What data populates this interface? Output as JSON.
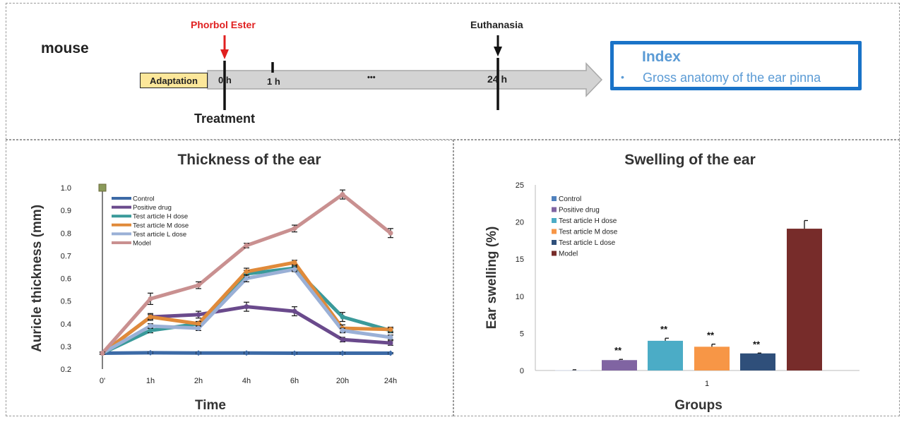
{
  "timeline": {
    "species": "mouse",
    "inducer": "Phorbol Ester",
    "endpoint": "Euthanasia",
    "adaptation": "Adaptation",
    "treatment": "Treatment",
    "ticks": [
      "0 h",
      "1 h",
      "•••",
      "24 h"
    ],
    "index_title": "Index",
    "index_bullet": "•",
    "index_item": "Gross anatomy of the ear pinna",
    "colors": {
      "inducer": "#e02020",
      "index_border": "#1a73c8",
      "index_text": "#5b9bd5",
      "adaptation_bg": "#fce79a"
    }
  },
  "chart_data": [
    {
      "type": "line",
      "title": "Thickness of the ear",
      "xlabel": "Time",
      "ylabel": "Auricle thickness (mm)",
      "categories": [
        "0'",
        "1h",
        "2h",
        "4h",
        "6h",
        "20h",
        "24h"
      ],
      "ylim": [
        0.2,
        1.0
      ],
      "yticks": [
        "0.2",
        "0.3",
        "0.4",
        "0.5",
        "0.6",
        "0.7",
        "0.8",
        "0.9",
        "1.0"
      ],
      "legend_position": "top-left",
      "series": [
        {
          "name": "Control",
          "color": "#3c6aa6",
          "values": [
            0.27,
            0.272,
            0.271,
            0.271,
            0.27,
            0.27,
            0.27
          ],
          "errors": [
            0.003,
            0.003,
            0.003,
            0.003,
            0.003,
            0.003,
            0.003
          ]
        },
        {
          "name": "Positive drug",
          "color": "#6a4a8c",
          "values": [
            0.27,
            0.43,
            0.44,
            0.475,
            0.455,
            0.33,
            0.315
          ],
          "errors": [
            0.005,
            0.01,
            0.015,
            0.02,
            0.02,
            0.01,
            0.01
          ]
        },
        {
          "name": "Test article H dose",
          "color": "#3a9a9a",
          "values": [
            0.27,
            0.37,
            0.4,
            0.62,
            0.645,
            0.43,
            0.37
          ],
          "errors": [
            0.005,
            0.01,
            0.01,
            0.015,
            0.01,
            0.02,
            0.01
          ]
        },
        {
          "name": "Test article M dose",
          "color": "#e08a3a",
          "values": [
            0.27,
            0.43,
            0.4,
            0.63,
            0.67,
            0.38,
            0.375
          ],
          "errors": [
            0.005,
            0.015,
            0.01,
            0.015,
            0.01,
            0.015,
            0.01
          ]
        },
        {
          "name": "Test article L dose",
          "color": "#9ab0d6",
          "values": [
            0.27,
            0.39,
            0.38,
            0.6,
            0.64,
            0.37,
            0.34
          ],
          "errors": [
            0.005,
            0.01,
            0.01,
            0.015,
            0.01,
            0.01,
            0.01
          ]
        },
        {
          "name": "Model",
          "color": "#c99090",
          "values": [
            0.27,
            0.51,
            0.57,
            0.745,
            0.82,
            0.97,
            0.8
          ],
          "errors": [
            0.005,
            0.025,
            0.015,
            0.01,
            0.015,
            0.02,
            0.02
          ]
        }
      ]
    },
    {
      "type": "bar",
      "title": "Swelling of the ear",
      "xlabel": "Groups",
      "ylabel": "Ear swelling (%)",
      "categories": [
        "1"
      ],
      "ylim": [
        0,
        25
      ],
      "yticks": [
        "0",
        "5",
        "10",
        "15",
        "20",
        "25"
      ],
      "legend_position": "top-left",
      "series": [
        {
          "name": "Control",
          "color": "#4f81bd",
          "values": [
            0.05
          ],
          "errors": [
            0.05
          ],
          "annotation": ""
        },
        {
          "name": "Positive drug",
          "color": "#8064a2",
          "values": [
            1.4
          ],
          "errors": [
            0.1
          ],
          "annotation": "**"
        },
        {
          "name": "Test article H dose",
          "color": "#4bacc6",
          "values": [
            4.0
          ],
          "errors": [
            0.35
          ],
          "annotation": "**"
        },
        {
          "name": "Test article M dose",
          "color": "#f79646",
          "values": [
            3.2
          ],
          "errors": [
            0.35
          ],
          "annotation": "**"
        },
        {
          "name": "Test article L dose",
          "color": "#2f4f7a",
          "values": [
            2.3
          ],
          "errors": [
            0.05
          ],
          "annotation": "**"
        },
        {
          "name": "Model",
          "color": "#772c2a",
          "values": [
            19.1
          ],
          "errors": [
            1.1
          ],
          "annotation": ""
        }
      ]
    }
  ]
}
